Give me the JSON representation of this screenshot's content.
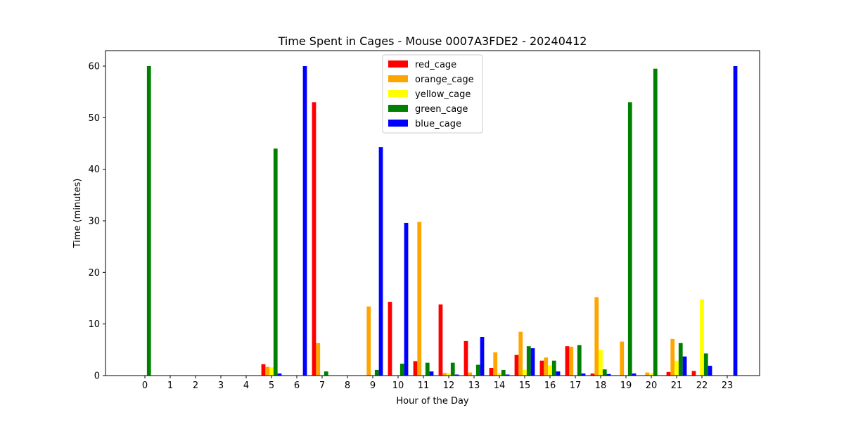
{
  "chart_data": {
    "type": "bar",
    "title": "Time Spent in Cages - Mouse 0007A3FDE2 - 20240412",
    "xlabel": "Hour of the Day",
    "ylabel": "Time (minutes)",
    "ylim": [
      0,
      63
    ],
    "yticks": [
      0,
      10,
      20,
      30,
      40,
      50,
      60
    ],
    "categories": [
      "0",
      "1",
      "2",
      "3",
      "4",
      "5",
      "6",
      "7",
      "8",
      "9",
      "10",
      "11",
      "12",
      "13",
      "14",
      "15",
      "16",
      "17",
      "18",
      "19",
      "20",
      "21",
      "22",
      "23"
    ],
    "legend_position": "upper center",
    "grid": false,
    "series": [
      {
        "name": "red_cage",
        "color": "#ff0000",
        "values": [
          0,
          0,
          0,
          0,
          0,
          2.2,
          0,
          53.0,
          0,
          0,
          14.3,
          2.8,
          13.8,
          6.7,
          1.5,
          4.0,
          2.9,
          5.7,
          0.4,
          0,
          0,
          0.7,
          0.9,
          0
        ]
      },
      {
        "name": "orange_cage",
        "color": "#ffa500",
        "values": [
          0,
          0,
          0,
          0,
          0,
          1.7,
          0,
          6.3,
          0,
          13.4,
          0,
          29.8,
          0.5,
          0.6,
          4.5,
          8.5,
          3.5,
          5.6,
          15.2,
          6.6,
          0.6,
          7.1,
          0,
          0
        ]
      },
      {
        "name": "yellow_cage",
        "color": "#ffff00",
        "values": [
          0,
          0,
          0,
          0,
          0,
          1.6,
          0,
          0,
          0,
          0,
          0,
          0,
          0.5,
          0,
          0.5,
          1.1,
          2.0,
          0,
          5.0,
          0,
          0.5,
          2.9,
          14.8,
          0
        ]
      },
      {
        "name": "green_cage",
        "color": "#008000",
        "values": [
          60.0,
          0,
          0,
          0,
          0,
          44.0,
          0,
          0.8,
          0,
          1.1,
          2.3,
          2.5,
          2.5,
          2.1,
          1.1,
          5.7,
          2.9,
          5.9,
          1.2,
          53.0,
          59.5,
          6.3,
          4.3,
          0
        ]
      },
      {
        "name": "blue_cage",
        "color": "#0000ff",
        "values": [
          0,
          0,
          0,
          0,
          0,
          0.4,
          60.0,
          0,
          0,
          44.3,
          29.6,
          0.8,
          0.2,
          7.5,
          0.2,
          5.3,
          0.8,
          0.4,
          0.3,
          0.4,
          0,
          3.7,
          1.9,
          60.0
        ]
      }
    ]
  }
}
